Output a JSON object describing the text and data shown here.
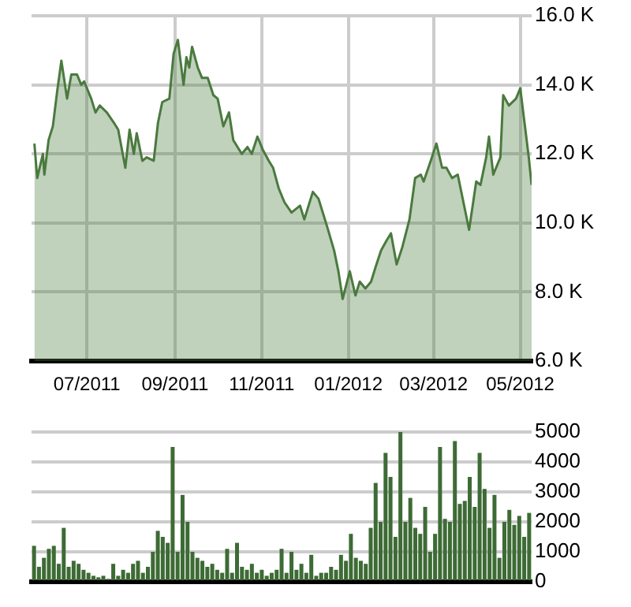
{
  "chart_data": [
    {
      "type": "area",
      "x": [
        "2011-05-25",
        "2011-05-27",
        "2011-05-31",
        "2011-06-01",
        "2011-06-04",
        "2011-06-07",
        "2011-06-10",
        "2011-06-13",
        "2011-06-17",
        "2011-06-20",
        "2011-06-24",
        "2011-06-27",
        "2011-06-29",
        "2011-07-04",
        "2011-07-07",
        "2011-07-10",
        "2011-07-15",
        "2011-07-20",
        "2011-07-23",
        "2011-07-28",
        "2011-07-31",
        "2011-08-03",
        "2011-08-05",
        "2011-08-09",
        "2011-08-12",
        "2011-08-17",
        "2011-08-20",
        "2011-08-23",
        "2011-08-28",
        "2011-08-31",
        "2011-09-03",
        "2011-09-07",
        "2011-09-09",
        "2011-09-11",
        "2011-09-13",
        "2011-09-17",
        "2011-09-20",
        "2011-09-24",
        "2011-09-28",
        "2011-10-01",
        "2011-10-05",
        "2011-10-09",
        "2011-10-12",
        "2011-10-18",
        "2011-10-22",
        "2011-10-25",
        "2011-10-29",
        "2011-11-02",
        "2011-11-06",
        "2011-11-09",
        "2011-11-13",
        "2011-11-17",
        "2011-11-22",
        "2011-11-28",
        "2011-12-01",
        "2011-12-07",
        "2011-12-11",
        "2011-12-17",
        "2011-12-22",
        "2011-12-25",
        "2011-12-28",
        "2012-01-02",
        "2012-01-06",
        "2012-01-09",
        "2012-01-13",
        "2012-01-17",
        "2012-01-20",
        "2012-01-24",
        "2012-01-28",
        "2012-01-31",
        "2012-02-04",
        "2012-02-08",
        "2012-02-13",
        "2012-02-17",
        "2012-02-21",
        "2012-02-23",
        "2012-02-28",
        "2012-03-03",
        "2012-03-07",
        "2012-03-10",
        "2012-03-14",
        "2012-03-18",
        "2012-03-23",
        "2012-03-26",
        "2012-03-31",
        "2012-04-03",
        "2012-04-07",
        "2012-04-09",
        "2012-04-12",
        "2012-04-17",
        "2012-04-19",
        "2012-04-23",
        "2012-04-28",
        "2012-05-01",
        "2012-05-04",
        "2012-05-07",
        "2012-05-09"
      ],
      "series": [
        {
          "color": "#4a7a3e",
          "values": [
            12300,
            11300,
            12000,
            11400,
            12400,
            12800,
            13800,
            14700,
            13600,
            14300,
            14300,
            14000,
            14100,
            13600,
            13200,
            13400,
            13200,
            12900,
            12700,
            11600,
            12700,
            12000,
            12600,
            11800,
            11900,
            11800,
            12900,
            13500,
            13600,
            14900,
            15300,
            14000,
            14800,
            14500,
            15100,
            14500,
            14200,
            14200,
            13700,
            13600,
            12800,
            13200,
            12400,
            12000,
            12200,
            12000,
            12500,
            12100,
            11800,
            11600,
            11000,
            10600,
            10300,
            10500,
            10100,
            10900,
            10700,
            9900,
            9200,
            8600,
            7800,
            8600,
            7900,
            8300,
            8100,
            8300,
            8700,
            9200,
            9500,
            9700,
            8800,
            9300,
            10100,
            11300,
            11400,
            11200,
            11800,
            12300,
            11600,
            11600,
            11300,
            11400,
            10400,
            9800,
            11200,
            11100,
            11900,
            12500,
            11400,
            11900,
            13700,
            13400,
            13600,
            13900,
            12900,
            11900,
            11100
          ]
        }
      ],
      "xlim": [
        "2011-05-23",
        "2012-05-09"
      ],
      "xticks": [
        {
          "value": "2011-07-01",
          "label": "07/2011"
        },
        {
          "value": "2011-09-01",
          "label": "09/2011"
        },
        {
          "value": "2011-11-01",
          "label": "11/2011"
        },
        {
          "value": "2012-01-01",
          "label": "01/2012"
        },
        {
          "value": "2012-03-01",
          "label": "03/2012"
        },
        {
          "value": "2012-05-01",
          "label": "05/2012"
        }
      ],
      "ylim": [
        6000,
        16000
      ],
      "yticks": [
        {
          "value": 6000,
          "label": "6.0 K"
        },
        {
          "value": 8000,
          "label": "8.0 K"
        },
        {
          "value": 10000,
          "label": "10.0 K"
        },
        {
          "value": 12000,
          "label": "12.0 K"
        },
        {
          "value": 14000,
          "label": "14.0 K"
        },
        {
          "value": 16000,
          "label": "16.0 K"
        }
      ],
      "grid": true
    },
    {
      "type": "bar",
      "categories": [
        null,
        null,
        null,
        null,
        null,
        null,
        null,
        null,
        null,
        null,
        null,
        null,
        null,
        null,
        null,
        null,
        null,
        null,
        null,
        null,
        null,
        null,
        null,
        null,
        null,
        null,
        null,
        null,
        null,
        null,
        null,
        null,
        null,
        null,
        null,
        null,
        null,
        null,
        null,
        null,
        null,
        null,
        null,
        null,
        null,
        null,
        null,
        null,
        null,
        null,
        null,
        null,
        null,
        null,
        null,
        null,
        null,
        null,
        null,
        null,
        null,
        null,
        null,
        null,
        null,
        null,
        null,
        null,
        null,
        null,
        null,
        null,
        null,
        null,
        null,
        null,
        null,
        null,
        null,
        null,
        null,
        null,
        null,
        null,
        null,
        null,
        null,
        null,
        null,
        null,
        null,
        null,
        null,
        null,
        null,
        null,
        null,
        null,
        null,
        null,
        null
      ],
      "series": [
        {
          "color": "#3d6b35",
          "values": [
            1200,
            500,
            800,
            1100,
            1200,
            600,
            1800,
            500,
            700,
            600,
            400,
            300,
            200,
            150,
            200,
            100,
            600,
            200,
            400,
            300,
            600,
            700,
            300,
            500,
            1000,
            1700,
            1500,
            1300,
            4500,
            1000,
            2900,
            2000,
            1000,
            800,
            700,
            500,
            600,
            400,
            300,
            1100,
            300,
            1300,
            500,
            400,
            600,
            300,
            400,
            200,
            300,
            400,
            1100,
            300,
            1000,
            400,
            600,
            300,
            900,
            200,
            300,
            300,
            500,
            400,
            900,
            700,
            1600,
            800,
            700,
            600,
            1800,
            3300,
            2000,
            4300,
            3500,
            1500,
            5000,
            2000,
            2800,
            1800,
            1600,
            2500,
            1000,
            1600,
            4500,
            2100,
            2000,
            4700,
            2600,
            2700,
            3500,
            2500,
            4300,
            3100,
            1800,
            2900,
            800,
            2000,
            2400,
            1900,
            2200,
            1500,
            2300
          ]
        }
      ],
      "ylim": [
        0,
        5000
      ],
      "yticks": [
        0,
        1000,
        2000,
        3000,
        4000,
        5000
      ],
      "grid": "y",
      "tick_labels": "y"
    }
  ]
}
